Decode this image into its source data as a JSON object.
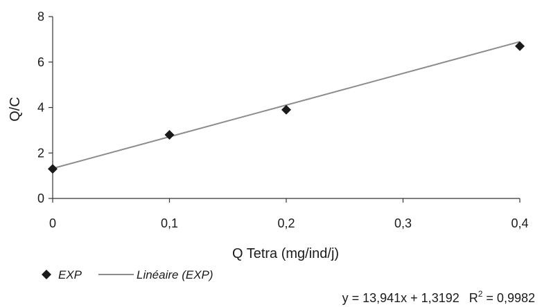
{
  "chart_data": {
    "type": "scatter",
    "title": "",
    "xlabel": "Q Tetra (mg/ind/j)",
    "ylabel": "Q/C",
    "xlim": [
      0,
      0.4
    ],
    "ylim": [
      0,
      8
    ],
    "x_ticks": [
      {
        "value": 0,
        "label": "0"
      },
      {
        "value": 0.1,
        "label": "0,1"
      },
      {
        "value": 0.2,
        "label": "0,2"
      },
      {
        "value": 0.3,
        "label": "0,3"
      },
      {
        "value": 0.4,
        "label": "0,4"
      }
    ],
    "y_ticks": [
      {
        "value": 0,
        "label": "0"
      },
      {
        "value": 2,
        "label": "2"
      },
      {
        "value": 4,
        "label": "4"
      },
      {
        "value": 6,
        "label": "6"
      },
      {
        "value": 8,
        "label": "8"
      }
    ],
    "grid": false,
    "legend_position": "bottom-left",
    "series": [
      {
        "name": "EXP",
        "marker": "diamond",
        "color": "#1a1a1a",
        "x": [
          0,
          0.1,
          0.2,
          0.4
        ],
        "y": [
          1.3,
          2.8,
          3.9,
          6.7
        ]
      }
    ],
    "trendline": {
      "name": "Linéaire (EXP)",
      "color": "#8c8c8c",
      "slope": 13.941,
      "intercept": 1.3192,
      "equation": "y = 13,941x + 1,3192",
      "r2_label": "R",
      "r2_sup": "2",
      "r2_value": " = 0,9982"
    }
  }
}
